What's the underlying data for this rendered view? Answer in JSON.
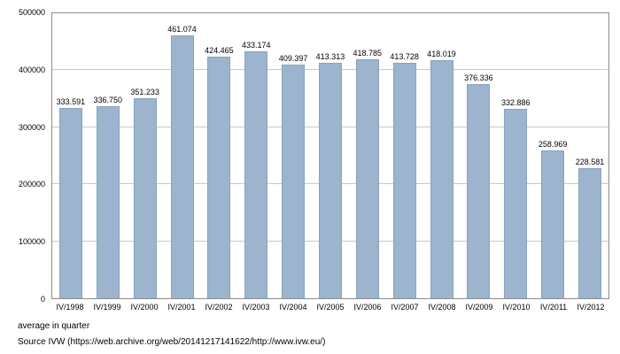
{
  "chart_data": {
    "type": "bar",
    "title": "",
    "xlabel": "",
    "ylabel": "",
    "categories": [
      "IV/1998",
      "IV/1999",
      "IV/2000",
      "IV/2001",
      "IV/2002",
      "IV/2003",
      "IV/2004",
      "IV/2005",
      "IV/2006",
      "IV/2007",
      "IV/2008",
      "IV/2009",
      "IV/2010",
      "IV/2011",
      "IV/2012"
    ],
    "values": [
      333591,
      336750,
      351233,
      461074,
      424465,
      433174,
      409397,
      413313,
      418785,
      413728,
      418019,
      376336,
      332886,
      258969,
      228581
    ],
    "value_labels": [
      "333.591",
      "336.750",
      "351.233",
      "461.074",
      "424.465",
      "433.174",
      "409.397",
      "413.313",
      "418.785",
      "413.728",
      "418.019",
      "376.336",
      "332.886",
      "258.969",
      "228.581"
    ],
    "ylim": [
      0,
      500000
    ],
    "y_ticks": [
      0,
      100000,
      200000,
      300000,
      400000,
      500000
    ],
    "y_tick_labels": [
      "0",
      "100000",
      "200000",
      "300000",
      "400000",
      "500000"
    ],
    "grid": true,
    "legend": false,
    "bar_color": "#9cb4ce",
    "bar_border_color": "#87a3c0"
  },
  "footer": {
    "caption": "average in quarter",
    "source": "Source IVW (https://web.archive.org/web/20141217141622/http://www.ivw.eu/)"
  }
}
